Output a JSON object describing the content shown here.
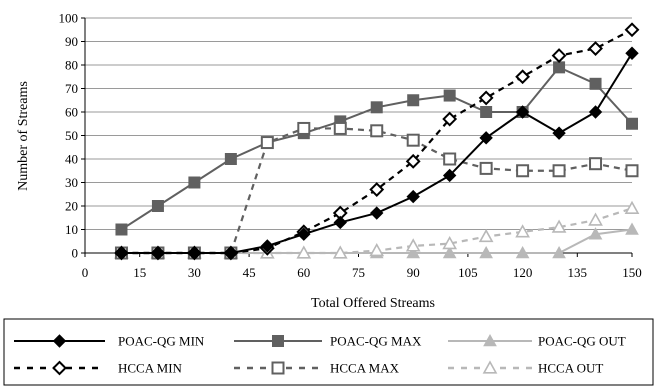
{
  "chart_data": {
    "type": "line",
    "xlabel": "Total Offered Streams",
    "ylabel": "Number of Streams",
    "xlim": [
      0,
      150
    ],
    "ylim": [
      0,
      100
    ],
    "x_ticks": [
      "0",
      "15",
      "30",
      "45",
      "60",
      "75",
      "90",
      "105",
      "120",
      "135",
      "150"
    ],
    "y_ticks": [
      "0",
      "10",
      "20",
      "30",
      "40",
      "50",
      "60",
      "70",
      "80",
      "90",
      "100"
    ],
    "grid": "horizontal",
    "legend_position": "bottom",
    "x": [
      10,
      20,
      30,
      40,
      50,
      60,
      70,
      80,
      90,
      100,
      110,
      120,
      130,
      140,
      150
    ],
    "series": [
      {
        "name": "POAC-QG MIN",
        "color": "#000000",
        "line": "solid",
        "marker": "diamond-filled",
        "values": [
          0,
          0,
          0,
          0,
          3,
          8,
          13,
          17,
          24,
          33,
          49,
          60,
          51,
          60,
          85
        ]
      },
      {
        "name": "POAC-QG MAX",
        "color": "#606060",
        "line": "solid",
        "marker": "square-filled",
        "values": [
          10,
          20,
          30,
          40,
          47,
          51,
          56,
          62,
          65,
          67,
          60,
          60,
          79,
          72,
          55
        ]
      },
      {
        "name": "POAC-QG OUT",
        "color": "#b8b8b8",
        "line": "solid",
        "marker": "triangle-filled",
        "values": [
          0,
          0,
          0,
          0,
          0,
          0,
          0,
          0,
          0,
          0,
          0,
          0,
          0,
          8,
          10
        ]
      },
      {
        "name": "HCCA MIN",
        "color": "#000000",
        "line": "dashed",
        "marker": "diamond-open",
        "values": [
          0,
          0,
          0,
          0,
          2,
          9,
          17,
          27,
          39,
          57,
          66,
          75,
          84,
          87,
          95
        ]
      },
      {
        "name": "HCCA MAX",
        "color": "#606060",
        "line": "dashed",
        "marker": "square-open",
        "values": [
          0,
          0,
          0,
          0,
          47,
          53,
          53,
          52,
          48,
          40,
          36,
          35,
          35,
          38,
          35
        ]
      },
      {
        "name": "HCCA OUT",
        "color": "#b8b8b8",
        "line": "dashed",
        "marker": "triangle-open",
        "values": [
          0,
          0,
          0,
          0,
          0,
          0,
          0,
          1,
          3,
          4,
          7,
          9,
          11,
          14,
          19
        ]
      }
    ]
  }
}
